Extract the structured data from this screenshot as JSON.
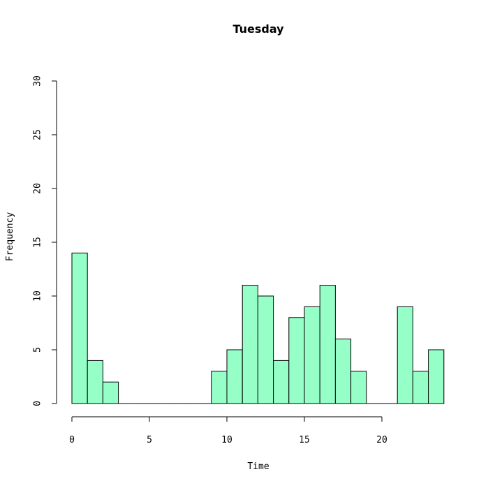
{
  "chart_data": {
    "type": "bar",
    "title": "Tuesday",
    "xlabel": "Time",
    "ylabel": "Frequency",
    "bins": [
      {
        "start": 0,
        "end": 1,
        "value": 14
      },
      {
        "start": 1,
        "end": 2,
        "value": 4
      },
      {
        "start": 2,
        "end": 3,
        "value": 2
      },
      {
        "start": 3,
        "end": 4,
        "value": 0
      },
      {
        "start": 4,
        "end": 5,
        "value": 0
      },
      {
        "start": 5,
        "end": 6,
        "value": 0
      },
      {
        "start": 6,
        "end": 7,
        "value": 0
      },
      {
        "start": 7,
        "end": 8,
        "value": 0
      },
      {
        "start": 8,
        "end": 9,
        "value": 0
      },
      {
        "start": 9,
        "end": 10,
        "value": 3
      },
      {
        "start": 10,
        "end": 11,
        "value": 5
      },
      {
        "start": 11,
        "end": 12,
        "value": 11
      },
      {
        "start": 12,
        "end": 13,
        "value": 10
      },
      {
        "start": 13,
        "end": 14,
        "value": 4
      },
      {
        "start": 14,
        "end": 15,
        "value": 8
      },
      {
        "start": 15,
        "end": 16,
        "value": 9
      },
      {
        "start": 16,
        "end": 17,
        "value": 11
      },
      {
        "start": 17,
        "end": 18,
        "value": 6
      },
      {
        "start": 18,
        "end": 19,
        "value": 3
      },
      {
        "start": 19,
        "end": 20,
        "value": 0
      },
      {
        "start": 20,
        "end": 21,
        "value": 0
      },
      {
        "start": 21,
        "end": 22,
        "value": 9
      },
      {
        "start": 22,
        "end": 23,
        "value": 3
      },
      {
        "start": 23,
        "end": 24,
        "value": 5
      }
    ],
    "xlim": [
      0,
      20
    ],
    "ylim": [
      0,
      30
    ],
    "xticks": [
      0,
      5,
      10,
      15,
      20
    ],
    "yticks": [
      0,
      5,
      10,
      15,
      20,
      25,
      30
    ],
    "bar_color": "#96ffc8",
    "edge_color": "#000000",
    "grid": false,
    "legend": "none"
  }
}
